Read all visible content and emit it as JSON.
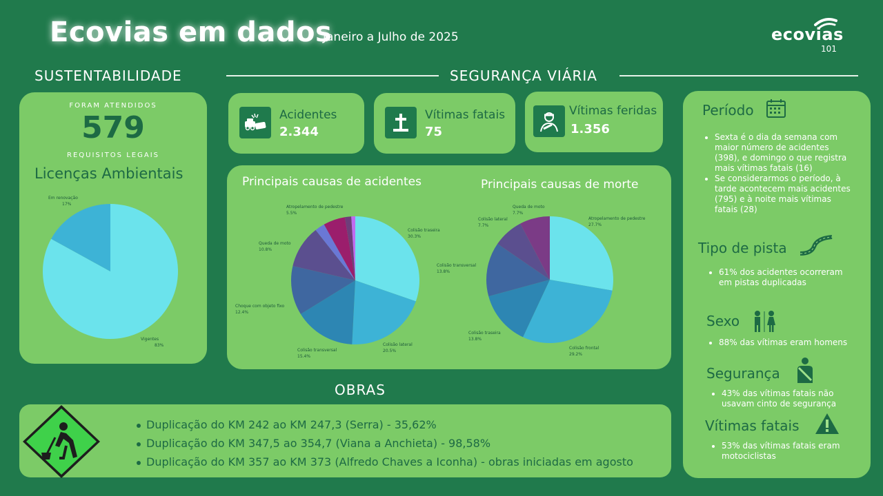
{
  "header": {
    "title": "Ecovias em dados",
    "subtitle": "Janeiro a Julho de 2025",
    "logo_text": "ecovias",
    "logo_sub": "101"
  },
  "sections": {
    "sustentabilidade": "SUSTENTABILIDADE",
    "seguranca": "SEGURANÇA VIÁRIA",
    "obras": "OBRAS"
  },
  "sustentabilidade": {
    "top_label": "FORAM ATENDIDOS",
    "big_number": "579",
    "bottom_label": "REQUISITOS LEGAIS",
    "chart_title": "Licenças Ambientais"
  },
  "stats": [
    {
      "label": "Acidentes",
      "value": "2.344",
      "icon": "car-crash-icon"
    },
    {
      "label": "Vítimas fatais",
      "value": "75",
      "icon": "grave-cross-icon"
    },
    {
      "label": "Vítimas feridas",
      "value": "1.356",
      "icon": "injured-person-icon"
    }
  ],
  "causes": {
    "accidents_title": "Principais causas de acidentes",
    "deaths_title": "Principais causas de morte"
  },
  "right_panel": {
    "periodo": {
      "title": "Período",
      "items": [
        "Sexta é o dia da semana com maior número de acidentes (398),  e domingo o que registra mais vítimas fatais (16)",
        "Se considerarmos o período, à tarde acontecem mais acidentes (795) e à noite mais vítimas fatais (28)"
      ]
    },
    "tipo_pista": {
      "title": "Tipo de pista",
      "items": [
        "61% dos acidentes ocorreram em pistas duplicadas"
      ]
    },
    "sexo": {
      "title": "Sexo",
      "items": [
        "88% das vítimas eram homens"
      ]
    },
    "seguranca": {
      "title": "Segurança",
      "items": [
        "43% das vítimas fatais não usavam cinto de segurança"
      ]
    },
    "vitimas_fatais": {
      "title": "Vítimas fatais",
      "items": [
        "53% das vítimas fatais eram motociclistas"
      ]
    }
  },
  "obras": {
    "items": [
      "Duplicação do KM 242 ao KM 247,3 (Serra) - 35,62%",
      "Duplicação do KM 347,5 ao 354,7 (Viana a Anchieta) - 98,58%",
      "Duplicação do KM 357 ao KM 373 (Alfredo Chaves a Iconha) - obras iniciadas em agosto"
    ]
  },
  "chart_data": [
    {
      "type": "pie",
      "title": "Licenças Ambientais",
      "labels": [
        "Vigentes",
        "Em renovação"
      ],
      "values": [
        83,
        17
      ],
      "value_labels": [
        "83%",
        "17%"
      ],
      "colors": [
        "#6be3ec",
        "#3db3d6"
      ]
    },
    {
      "type": "pie",
      "title": "Principais causas de acidentes",
      "labels": [
        "Colisão traseira",
        "Colisão lateral",
        "Colisão transversal",
        "Choque com objeto fixo",
        "Queda de moto",
        "",
        "Atropelamento de pedestre",
        "",
        ""
      ],
      "values": [
        30.3,
        20.5,
        15.4,
        12.4,
        10.8,
        2.5,
        5.5,
        1.6,
        1.0
      ],
      "value_labels": [
        "30.3%",
        "20.5%",
        "15.4%",
        "12.4%",
        "10.8%",
        "",
        "5.5%",
        "",
        ""
      ],
      "colors": [
        "#6be3ec",
        "#3db3d6",
        "#2d86b3",
        "#3f67a0",
        "#5b4f8f",
        "#6a78d6",
        "#9b1e6c",
        "#6f3d7a",
        "#c06bf0"
      ]
    },
    {
      "type": "pie",
      "title": "Principais causas de morte",
      "labels": [
        "Atropelamento de pedestre",
        "Colisão frontal",
        "Colisão traseira",
        "Colisão transversal",
        "Colisão lateral",
        "Queda de moto"
      ],
      "values": [
        27.7,
        29.2,
        13.8,
        13.8,
        7.7,
        7.7
      ],
      "value_labels": [
        "27.7%",
        "29.2%",
        "13.8%",
        "13.8%",
        "7.7%",
        "7.7%"
      ],
      "colors": [
        "#6be3ec",
        "#3db3d6",
        "#2d86b3",
        "#3f67a0",
        "#5b4f8f",
        "#7b3b86"
      ]
    }
  ]
}
